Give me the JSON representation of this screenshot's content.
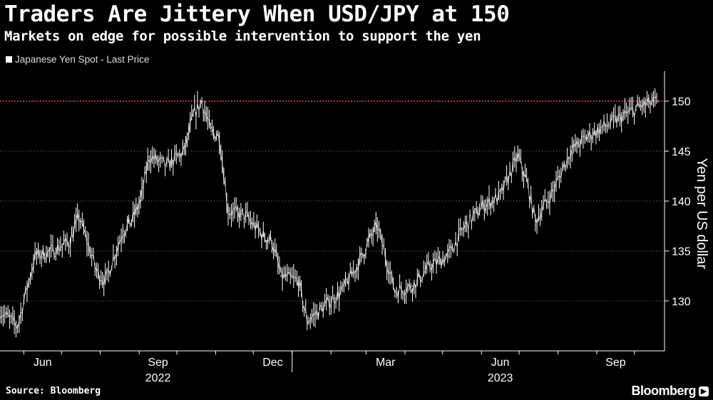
{
  "header": {
    "title": "Traders Are Jittery When USD/JPY at 150",
    "subtitle": "Markets on edge for possible intervention to support the yen"
  },
  "footer": {
    "source": "Source: Bloomberg",
    "brand": "Bloomberg"
  },
  "colors": {
    "background": "#000000",
    "series": "#ffffff",
    "reference_line": "#e8405a",
    "axis": "#ffffff"
  },
  "icons": {
    "brand_mark": "play-icon"
  },
  "chart_data": {
    "type": "line",
    "legend": [
      "Japanese Yen Spot - Last Price"
    ],
    "ylabel": "Yen per US dollar",
    "xlabel": "",
    "ylim": [
      125,
      153
    ],
    "yticks": [
      130,
      135,
      140,
      145,
      150
    ],
    "y_axis_side": "right",
    "grid": "horizontal dotted",
    "legend_position": "top-left",
    "x_tick_labels": [
      "Jun",
      "Sep",
      "Dec",
      "Mar",
      "Jun",
      "Sep"
    ],
    "x_tick_months": [
      "2022-06",
      "2022-09",
      "2022-12",
      "2023-03",
      "2023-06",
      "2023-09"
    ],
    "year_labels": [
      {
        "label": "2022",
        "month": "2022-09"
      },
      {
        "label": "2023",
        "month": "2023-06"
      }
    ],
    "reference_line": {
      "y": 150
    },
    "series": [
      {
        "name": "Japanese Yen Spot - Last Price",
        "x": [
          "2022-05-13",
          "2022-05-27",
          "2022-06-10",
          "2022-06-24",
          "2022-07-08",
          "2022-07-15",
          "2022-07-29",
          "2022-08-05",
          "2022-08-19",
          "2022-08-26",
          "2022-09-02",
          "2022-09-09",
          "2022-09-23",
          "2022-10-07",
          "2022-10-14",
          "2022-10-21",
          "2022-10-28",
          "2022-11-04",
          "2022-11-11",
          "2022-11-25",
          "2022-12-09",
          "2022-12-16",
          "2022-12-23",
          "2023-01-06",
          "2023-01-13",
          "2023-01-27",
          "2023-02-10",
          "2023-02-24",
          "2023-03-03",
          "2023-03-10",
          "2023-03-24",
          "2023-04-07",
          "2023-04-21",
          "2023-05-05",
          "2023-05-19",
          "2023-06-02",
          "2023-06-16",
          "2023-06-30",
          "2023-07-07",
          "2023-07-14",
          "2023-07-28",
          "2023-08-11",
          "2023-08-25",
          "2023-09-08",
          "2023-09-22",
          "2023-10-06",
          "2023-10-20"
        ],
        "values": [
          129.0,
          127.5,
          134.5,
          135.0,
          136.0,
          138.5,
          133.0,
          132.0,
          137.0,
          138.0,
          140.0,
          144.5,
          143.5,
          145.0,
          148.5,
          150.0,
          147.0,
          146.5,
          139.0,
          138.5,
          136.5,
          136.0,
          132.5,
          132.0,
          128.0,
          129.5,
          131.0,
          134.0,
          136.0,
          137.5,
          131.0,
          131.5,
          133.5,
          134.5,
          137.5,
          139.5,
          140.5,
          144.5,
          142.0,
          138.0,
          141.0,
          145.0,
          146.5,
          147.5,
          148.5,
          149.5,
          150.0
        ]
      }
    ]
  }
}
